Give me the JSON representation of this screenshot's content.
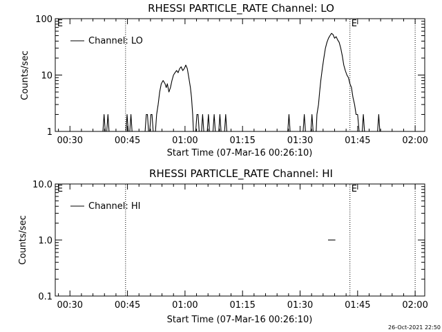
{
  "chart_data": [
    {
      "type": "line",
      "title": "RHESSI PARTICLE_RATE Channel: LO",
      "xlabel": "Start Time (07-Mar-16 00:26:10)",
      "ylabel": "Counts/sec",
      "yscale": "log",
      "xlim": [
        26.17,
        122.5
      ],
      "ylim": [
        1,
        100
      ],
      "xticks": [
        30,
        45,
        60,
        75,
        90,
        105,
        120
      ],
      "xtick_labels": [
        "00:30",
        "00:45",
        "01:00",
        "01:15",
        "01:30",
        "01:45",
        "02:00"
      ],
      "yticks": [
        1,
        10,
        100
      ],
      "ytick_labels": [
        "1",
        "10",
        "100"
      ],
      "vlines": [
        44.5,
        103.0,
        120.0
      ],
      "flag_markers": [
        {
          "label": "E",
          "x": 26.5
        },
        {
          "label": "E",
          "x": 103.2
        }
      ],
      "legend": {
        "entries": [
          "Channel: LO"
        ],
        "position": "top-left"
      },
      "series": [
        {
          "name": "Channel: LO",
          "segments": [
            [
              [
                38.6,
                1
              ],
              [
                38.9,
                2
              ],
              [
                39.2,
                1
              ]
            ],
            [
              [
                39.6,
                1
              ],
              [
                39.9,
                2
              ],
              [
                40.2,
                1
              ]
            ],
            [
              [
                44.6,
                1
              ],
              [
                44.9,
                2
              ],
              [
                45.2,
                1
              ]
            ],
            [
              [
                45.6,
                1
              ],
              [
                45.9,
                2
              ],
              [
                46.2,
                1
              ]
            ],
            [
              [
                49.6,
                1
              ],
              [
                49.9,
                2
              ],
              [
                50.2,
                2
              ],
              [
                50.5,
                1
              ]
            ],
            [
              [
                50.8,
                1
              ],
              [
                51.1,
                2
              ],
              [
                51.4,
                2
              ],
              [
                51.7,
                1
              ]
            ],
            [
              [
                52.3,
                1
              ],
              [
                52.6,
                2
              ],
              [
                53,
                3
              ],
              [
                53.4,
                5
              ],
              [
                53.8,
                7
              ],
              [
                54.3,
                8
              ],
              [
                54.8,
                7
              ],
              [
                55.1,
                6
              ],
              [
                55.4,
                7
              ],
              [
                55.8,
                5
              ],
              [
                56.2,
                6
              ],
              [
                56.6,
                8
              ],
              [
                57,
                10
              ],
              [
                57.4,
                11
              ],
              [
                57.8,
                12
              ],
              [
                58.2,
                11
              ],
              [
                58.6,
                13
              ],
              [
                59,
                14
              ],
              [
                59.4,
                12
              ],
              [
                59.8,
                13
              ],
              [
                60.2,
                15
              ],
              [
                60.6,
                13
              ],
              [
                61,
                9
              ],
              [
                61.4,
                6
              ],
              [
                61.7,
                4
              ],
              [
                62,
                2
              ],
              [
                62.2,
                1
              ]
            ],
            [
              [
                62.8,
                1
              ],
              [
                63.1,
                2
              ],
              [
                63.4,
                2
              ],
              [
                63.7,
                1
              ]
            ],
            [
              [
                64.3,
                1
              ],
              [
                64.6,
                2
              ],
              [
                64.9,
                1
              ]
            ],
            [
              [
                65.8,
                1
              ],
              [
                66.1,
                2
              ],
              [
                66.4,
                1
              ]
            ],
            [
              [
                67.3,
                1
              ],
              [
                67.6,
                2
              ],
              [
                67.9,
                1
              ]
            ],
            [
              [
                68.8,
                1
              ],
              [
                69.1,
                2
              ],
              [
                69.4,
                1
              ]
            ],
            [
              [
                70.3,
                1
              ],
              [
                70.6,
                2
              ],
              [
                70.9,
                1
              ]
            ],
            [
              [
                86.8,
                1
              ],
              [
                87.1,
                2
              ],
              [
                87.4,
                1
              ]
            ],
            [
              [
                90.8,
                1
              ],
              [
                91.1,
                2
              ],
              [
                91.4,
                1
              ]
            ],
            [
              [
                92.8,
                1
              ],
              [
                93.1,
                2
              ],
              [
                93.4,
                1
              ]
            ],
            [
              [
                94.2,
                1
              ],
              [
                94.4,
                2
              ],
              [
                94.8,
                3
              ],
              [
                95.1,
                5
              ],
              [
                95.4,
                8
              ],
              [
                95.8,
                13
              ],
              [
                96.2,
                20
              ],
              [
                96.6,
                30
              ],
              [
                97,
                38
              ],
              [
                97.4,
                45
              ],
              [
                97.8,
                50
              ],
              [
                98.2,
                55
              ],
              [
                98.6,
                52
              ],
              [
                99,
                45
              ],
              [
                99.4,
                48
              ],
              [
                99.8,
                42
              ],
              [
                100.2,
                38
              ],
              [
                100.6,
                30
              ],
              [
                101,
                22
              ],
              [
                101.4,
                15
              ],
              [
                101.8,
                12
              ],
              [
                102.2,
                10
              ],
              [
                102.6,
                9
              ],
              [
                103,
                7
              ],
              [
                103.4,
                6
              ],
              [
                103.8,
                4
              ],
              [
                104.2,
                3
              ],
              [
                104.6,
                2
              ],
              [
                105,
                2
              ],
              [
                105.4,
                1
              ]
            ],
            [
              [
                106.2,
                1
              ],
              [
                106.5,
                2
              ],
              [
                106.8,
                1
              ]
            ],
            [
              [
                110.2,
                1
              ],
              [
                110.5,
                2
              ],
              [
                110.8,
                1
              ]
            ]
          ]
        }
      ]
    },
    {
      "type": "line",
      "title": "RHESSI PARTICLE_RATE Channel: HI",
      "xlabel": "Start Time (07-Mar-16 00:26:10)",
      "ylabel": "Counts/sec",
      "yscale": "log",
      "xlim": [
        26.17,
        122.5
      ],
      "ylim": [
        0.1,
        10
      ],
      "xticks": [
        30,
        45,
        60,
        75,
        90,
        105,
        120
      ],
      "xtick_labels": [
        "00:30",
        "00:45",
        "01:00",
        "01:15",
        "01:30",
        "01:45",
        "02:00"
      ],
      "yticks": [
        0.1,
        1,
        10
      ],
      "ytick_labels": [
        "0.1",
        "1.0",
        "10.0"
      ],
      "vlines": [
        44.5,
        103.0,
        120.0
      ],
      "flag_markers": [
        {
          "label": "E",
          "x": 26.5
        },
        {
          "label": "E",
          "x": 103.2
        }
      ],
      "legend": {
        "entries": [
          "Channel: HI"
        ],
        "position": "top-left"
      },
      "series": [
        {
          "name": "Channel: HI",
          "segments": [
            [
              [
                97.3,
                1
              ],
              [
                99.2,
                1
              ]
            ]
          ]
        }
      ]
    }
  ],
  "footer": {
    "timestamp": "26-Oct-2021 22:50"
  }
}
